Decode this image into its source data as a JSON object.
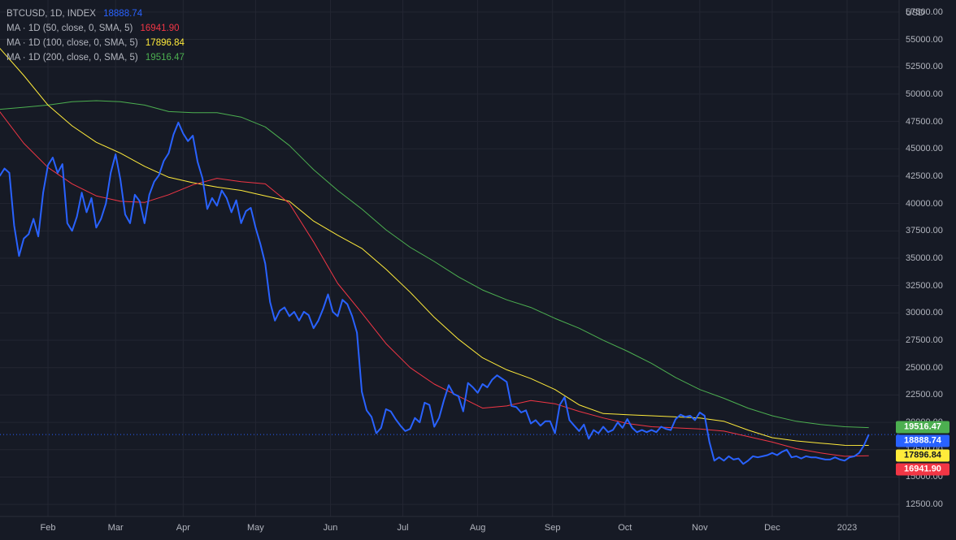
{
  "legend": {
    "symbol": "BTCUSD, 1D, INDEX",
    "price": "18888.74",
    "ma50": {
      "label": "MA · 1D (50, close, 0, SMA, 5)",
      "value": "16941.90",
      "color": "#f23645"
    },
    "ma100": {
      "label": "MA · 1D (100, close, 0, SMA, 5)",
      "value": "17896.84",
      "color": "#ffeb3b"
    },
    "ma200": {
      "label": "MA · 1D (200, close, 0, SMA, 5)",
      "value": "19516.47",
      "color": "#4caf50"
    }
  },
  "price_color": "#2962ff",
  "currency": "USD",
  "chart_data": {
    "type": "line",
    "title": "BTCUSD, 1D, INDEX",
    "ylabel": "USD",
    "ylim": [
      11400,
      58600
    ],
    "grid": true,
    "legend": "top-left",
    "yticks": [
      "57500.00",
      "55000.00",
      "52500.00",
      "50000.00",
      "47500.00",
      "45000.00",
      "42500.00",
      "40000.00",
      "37500.00",
      "35000.00",
      "32500.00",
      "30000.00",
      "27500.00",
      "25000.00",
      "22500.00",
      "20000.00",
      "17500.00",
      "15000.00",
      "12500.00"
    ],
    "xticks": [
      "Feb",
      "Mar",
      "Apr",
      "May",
      "Jun",
      "Jul",
      "Aug",
      "Sep",
      "Oct",
      "Nov",
      "Dec",
      "2023"
    ],
    "x_ticks_days": [
      0,
      28,
      56,
      86,
      117,
      147,
      178,
      209,
      239,
      270,
      300,
      331
    ],
    "x_unit": "day of period starting 2022-02-01",
    "series": [
      {
        "name": "BTCUSD",
        "color": "#2962ff",
        "points": [
          [
            -20,
            42500
          ],
          [
            -18,
            43200
          ],
          [
            -16,
            42800
          ],
          [
            -14,
            38000
          ],
          [
            -12,
            35200
          ],
          [
            -10,
            36800
          ],
          [
            -8,
            37200
          ],
          [
            -6,
            38600
          ],
          [
            -4,
            37000
          ],
          [
            -2,
            41000
          ],
          [
            0,
            43500
          ],
          [
            2,
            44200
          ],
          [
            4,
            42800
          ],
          [
            6,
            43600
          ],
          [
            8,
            38200
          ],
          [
            10,
            37500
          ],
          [
            12,
            38800
          ],
          [
            14,
            41000
          ],
          [
            16,
            39200
          ],
          [
            18,
            40500
          ],
          [
            20,
            37800
          ],
          [
            22,
            38600
          ],
          [
            24,
            40000
          ],
          [
            26,
            42800
          ],
          [
            28,
            44500
          ],
          [
            30,
            42200
          ],
          [
            32,
            39000
          ],
          [
            34,
            38200
          ],
          [
            36,
            40800
          ],
          [
            38,
            40200
          ],
          [
            40,
            38200
          ],
          [
            42,
            40800
          ],
          [
            44,
            42000
          ],
          [
            46,
            42600
          ],
          [
            48,
            43900
          ],
          [
            50,
            44600
          ],
          [
            52,
            46300
          ],
          [
            54,
            47400
          ],
          [
            56,
            46400
          ],
          [
            58,
            45700
          ],
          [
            60,
            46200
          ],
          [
            62,
            43800
          ],
          [
            64,
            42300
          ],
          [
            66,
            39500
          ],
          [
            68,
            40500
          ],
          [
            70,
            39800
          ],
          [
            72,
            41200
          ],
          [
            74,
            40500
          ],
          [
            76,
            39200
          ],
          [
            78,
            40300
          ],
          [
            80,
            38200
          ],
          [
            82,
            39300
          ],
          [
            84,
            39600
          ],
          [
            86,
            37800
          ],
          [
            88,
            36300
          ],
          [
            90,
            34500
          ],
          [
            92,
            31000
          ],
          [
            94,
            29300
          ],
          [
            96,
            30200
          ],
          [
            98,
            30500
          ],
          [
            100,
            29700
          ],
          [
            102,
            30100
          ],
          [
            104,
            29300
          ],
          [
            106,
            30100
          ],
          [
            108,
            29800
          ],
          [
            110,
            28600
          ],
          [
            112,
            29300
          ],
          [
            114,
            30400
          ],
          [
            116,
            31700
          ],
          [
            118,
            30100
          ],
          [
            120,
            29700
          ],
          [
            122,
            31200
          ],
          [
            124,
            30800
          ],
          [
            126,
            29700
          ],
          [
            128,
            28200
          ],
          [
            130,
            22800
          ],
          [
            132,
            21100
          ],
          [
            134,
            20500
          ],
          [
            136,
            19000
          ],
          [
            138,
            19500
          ],
          [
            140,
            21200
          ],
          [
            142,
            21000
          ],
          [
            144,
            20300
          ],
          [
            146,
            19700
          ],
          [
            148,
            19200
          ],
          [
            150,
            19400
          ],
          [
            152,
            20400
          ],
          [
            154,
            20000
          ],
          [
            156,
            21800
          ],
          [
            158,
            21600
          ],
          [
            160,
            19600
          ],
          [
            162,
            20400
          ],
          [
            164,
            22000
          ],
          [
            166,
            23400
          ],
          [
            168,
            22600
          ],
          [
            170,
            22400
          ],
          [
            172,
            21000
          ],
          [
            174,
            23600
          ],
          [
            176,
            23200
          ],
          [
            178,
            22700
          ],
          [
            180,
            23500
          ],
          [
            182,
            23200
          ],
          [
            184,
            23900
          ],
          [
            186,
            24300
          ],
          [
            188,
            24000
          ],
          [
            190,
            23700
          ],
          [
            192,
            21500
          ],
          [
            194,
            21400
          ],
          [
            196,
            20900
          ],
          [
            198,
            21100
          ],
          [
            200,
            19900
          ],
          [
            202,
            20200
          ],
          [
            204,
            19700
          ],
          [
            206,
            20100
          ],
          [
            208,
            20100
          ],
          [
            210,
            19000
          ],
          [
            212,
            21600
          ],
          [
            214,
            22300
          ],
          [
            216,
            20200
          ],
          [
            218,
            19700
          ],
          [
            220,
            19200
          ],
          [
            222,
            19800
          ],
          [
            224,
            18500
          ],
          [
            226,
            19300
          ],
          [
            228,
            19000
          ],
          [
            230,
            19600
          ],
          [
            232,
            19100
          ],
          [
            234,
            19300
          ],
          [
            236,
            20000
          ],
          [
            238,
            19500
          ],
          [
            240,
            20300
          ],
          [
            242,
            19500
          ],
          [
            244,
            19100
          ],
          [
            246,
            19300
          ],
          [
            248,
            19100
          ],
          [
            250,
            19300
          ],
          [
            252,
            19100
          ],
          [
            254,
            19600
          ],
          [
            256,
            19400
          ],
          [
            258,
            19300
          ],
          [
            260,
            20300
          ],
          [
            262,
            20700
          ],
          [
            264,
            20500
          ],
          [
            266,
            20600
          ],
          [
            268,
            20200
          ],
          [
            270,
            20900
          ],
          [
            272,
            20600
          ],
          [
            274,
            18200
          ],
          [
            276,
            16500
          ],
          [
            278,
            16800
          ],
          [
            280,
            16500
          ],
          [
            282,
            16900
          ],
          [
            284,
            16600
          ],
          [
            286,
            16700
          ],
          [
            288,
            16200
          ],
          [
            290,
            16500
          ],
          [
            292,
            16900
          ],
          [
            294,
            16800
          ],
          [
            296,
            16900
          ],
          [
            298,
            17000
          ],
          [
            300,
            17200
          ],
          [
            302,
            17000
          ],
          [
            304,
            17300
          ],
          [
            306,
            17500
          ],
          [
            308,
            16800
          ],
          [
            310,
            16900
          ],
          [
            312,
            16700
          ],
          [
            314,
            16900
          ],
          [
            316,
            16800
          ],
          [
            318,
            16800
          ],
          [
            320,
            16700
          ],
          [
            322,
            16600
          ],
          [
            324,
            16600
          ],
          [
            326,
            16800
          ],
          [
            328,
            16600
          ],
          [
            330,
            16500
          ],
          [
            332,
            16800
          ],
          [
            334,
            16900
          ],
          [
            336,
            17200
          ],
          [
            338,
            17900
          ],
          [
            340,
            18889
          ]
        ]
      },
      {
        "name": "MA · 1D (50, close, 0, SMA, 5)",
        "color": "#f23645",
        "points": [
          [
            -20,
            48400
          ],
          [
            -10,
            45500
          ],
          [
            0,
            43300
          ],
          [
            10,
            41800
          ],
          [
            20,
            40700
          ],
          [
            30,
            40200
          ],
          [
            40,
            40100
          ],
          [
            50,
            40800
          ],
          [
            60,
            41700
          ],
          [
            70,
            42300
          ],
          [
            80,
            42000
          ],
          [
            90,
            41800
          ],
          [
            100,
            40000
          ],
          [
            110,
            36500
          ],
          [
            120,
            32700
          ],
          [
            130,
            30000
          ],
          [
            140,
            27200
          ],
          [
            150,
            25000
          ],
          [
            160,
            23500
          ],
          [
            170,
            22400
          ],
          [
            180,
            21300
          ],
          [
            190,
            21500
          ],
          [
            200,
            22000
          ],
          [
            210,
            21700
          ],
          [
            220,
            21000
          ],
          [
            230,
            20400
          ],
          [
            240,
            19900
          ],
          [
            250,
            19600
          ],
          [
            260,
            19500
          ],
          [
            270,
            19400
          ],
          [
            280,
            19200
          ],
          [
            290,
            18700
          ],
          [
            300,
            18200
          ],
          [
            310,
            17600
          ],
          [
            320,
            17200
          ],
          [
            330,
            16900
          ],
          [
            340,
            16942
          ]
        ]
      },
      {
        "name": "MA · 1D (100, close, 0, SMA, 5)",
        "color": "#ffeb3b",
        "points": [
          [
            -20,
            54200
          ],
          [
            -10,
            51700
          ],
          [
            0,
            49000
          ],
          [
            10,
            47100
          ],
          [
            20,
            45600
          ],
          [
            30,
            44600
          ],
          [
            40,
            43400
          ],
          [
            50,
            42400
          ],
          [
            60,
            41900
          ],
          [
            70,
            41500
          ],
          [
            80,
            41200
          ],
          [
            90,
            40700
          ],
          [
            100,
            40200
          ],
          [
            110,
            38400
          ],
          [
            120,
            37100
          ],
          [
            130,
            35900
          ],
          [
            140,
            34000
          ],
          [
            150,
            31900
          ],
          [
            160,
            29600
          ],
          [
            170,
            27600
          ],
          [
            180,
            25900
          ],
          [
            190,
            24800
          ],
          [
            200,
            24000
          ],
          [
            210,
            23000
          ],
          [
            220,
            21600
          ],
          [
            230,
            20800
          ],
          [
            240,
            20700
          ],
          [
            250,
            20600
          ],
          [
            260,
            20500
          ],
          [
            270,
            20400
          ],
          [
            280,
            20100
          ],
          [
            290,
            19300
          ],
          [
            300,
            18600
          ],
          [
            310,
            18300
          ],
          [
            320,
            18100
          ],
          [
            330,
            17900
          ],
          [
            340,
            17897
          ]
        ]
      },
      {
        "name": "MA · 1D (200, close, 0, SMA, 5)",
        "color": "#4caf50",
        "points": [
          [
            -20,
            48600
          ],
          [
            -10,
            48800
          ],
          [
            0,
            49000
          ],
          [
            10,
            49300
          ],
          [
            20,
            49400
          ],
          [
            30,
            49300
          ],
          [
            40,
            49000
          ],
          [
            50,
            48400
          ],
          [
            60,
            48300
          ],
          [
            70,
            48300
          ],
          [
            80,
            47900
          ],
          [
            90,
            47000
          ],
          [
            100,
            45300
          ],
          [
            110,
            43100
          ],
          [
            120,
            41200
          ],
          [
            130,
            39500
          ],
          [
            140,
            37600
          ],
          [
            150,
            36000
          ],
          [
            160,
            34700
          ],
          [
            170,
            33300
          ],
          [
            180,
            32100
          ],
          [
            190,
            31200
          ],
          [
            200,
            30500
          ],
          [
            210,
            29500
          ],
          [
            220,
            28600
          ],
          [
            230,
            27500
          ],
          [
            240,
            26500
          ],
          [
            250,
            25400
          ],
          [
            260,
            24100
          ],
          [
            270,
            23000
          ],
          [
            280,
            22200
          ],
          [
            290,
            21300
          ],
          [
            300,
            20600
          ],
          [
            310,
            20100
          ],
          [
            320,
            19800
          ],
          [
            330,
            19600
          ],
          [
            340,
            19516
          ]
        ]
      }
    ]
  },
  "price_tags": [
    {
      "value": "19516.47",
      "price": 19516.47,
      "bg": "#4caf50",
      "fg": "#ffffff"
    },
    {
      "value": "18888.74",
      "price": 18888.74,
      "bg": "#2962ff",
      "fg": "#ffffff"
    },
    {
      "value": "17896.84",
      "price": 17896.84,
      "bg": "#ffeb3b",
      "fg": "#131722"
    },
    {
      "value": "16941.90",
      "price": 16941.9,
      "bg": "#f23645",
      "fg": "#ffffff"
    }
  ]
}
